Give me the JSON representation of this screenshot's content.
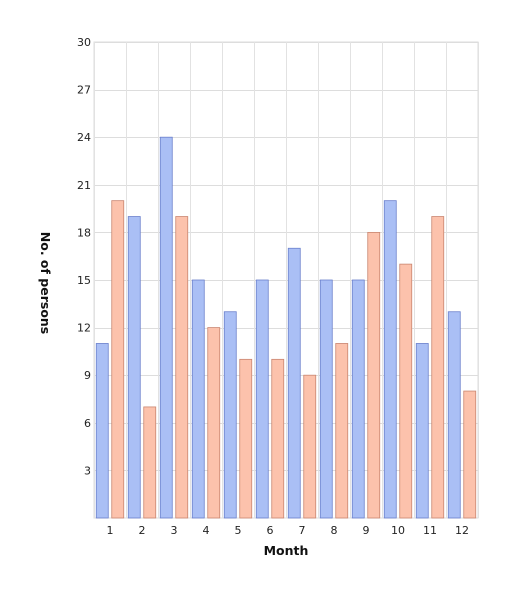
{
  "chart_data": {
    "type": "bar",
    "xlabel": "Month",
    "ylabel": "No. of persons",
    "categories": [
      "1",
      "2",
      "3",
      "4",
      "5",
      "6",
      "7",
      "8",
      "9",
      "10",
      "11",
      "12"
    ],
    "ylim": [
      0,
      30
    ],
    "yticks": [
      3,
      6,
      9,
      12,
      15,
      18,
      21,
      24,
      27,
      30
    ],
    "grid": true,
    "legend": "none",
    "series": [
      {
        "values": [
          11,
          19,
          24,
          15,
          13,
          15,
          17,
          15,
          15,
          20,
          11,
          13
        ],
        "color": "#aabff5",
        "stroke": "#6a7fcc"
      },
      {
        "values": [
          20,
          7,
          19,
          12,
          10,
          10,
          9,
          11,
          18,
          16,
          19,
          8
        ],
        "color": "#fcc2ac",
        "stroke": "#c98570"
      }
    ]
  }
}
